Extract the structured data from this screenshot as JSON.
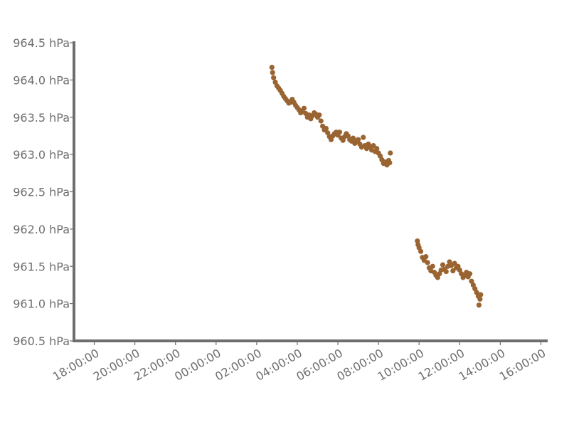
{
  "chart_data": {
    "type": "scatter",
    "title": "",
    "xlabel": "",
    "ylabel": "",
    "marker_color": "#9a6432",
    "axis_color": "#6e6e6e",
    "grid": false,
    "x_range": [
      "17:00:00",
      "40:20:00"
    ],
    "ylim": [
      960.5,
      964.5
    ],
    "x_ticks": [
      "18:00:00",
      "20:00:00",
      "22:00:00",
      "00:00:00",
      "02:00:00",
      "04:00:00",
      "06:00:00",
      "08:00:00",
      "10:00:00",
      "12:00:00",
      "14:00:00",
      "16:00:00"
    ],
    "y_ticks": [
      "960.5 hPa",
      "961.0 hPa",
      "961.5 hPa",
      "962.0 hPa",
      "962.5 hPa",
      "963.0 hPa",
      "963.5 hPa",
      "964.0 hPa",
      "964.5 hPa"
    ],
    "series": [
      {
        "points": [
          [
            "02:45",
            964.17
          ],
          [
            "02:47",
            964.1
          ],
          [
            "02:50",
            964.03
          ],
          [
            "02:55",
            963.97
          ],
          [
            "03:00",
            963.92
          ],
          [
            "03:05",
            963.89
          ],
          [
            "03:10",
            963.86
          ],
          [
            "03:15",
            963.82
          ],
          [
            "03:20",
            963.78
          ],
          [
            "03:25",
            963.75
          ],
          [
            "03:30",
            963.72
          ],
          [
            "03:35",
            963.69
          ],
          [
            "03:40",
            963.7
          ],
          [
            "03:45",
            963.74
          ],
          [
            "03:50",
            963.7
          ],
          [
            "03:55",
            963.66
          ],
          [
            "04:00",
            963.63
          ],
          [
            "04:05",
            963.6
          ],
          [
            "04:10",
            963.56
          ],
          [
            "04:15",
            963.58
          ],
          [
            "04:20",
            963.62
          ],
          [
            "04:25",
            963.55
          ],
          [
            "04:30",
            963.5
          ],
          [
            "04:35",
            963.53
          ],
          [
            "04:40",
            963.48
          ],
          [
            "04:45",
            963.52
          ],
          [
            "04:50",
            963.56
          ],
          [
            "04:55",
            963.54
          ],
          [
            "05:00",
            963.5
          ],
          [
            "05:05",
            963.53
          ],
          [
            "05:10",
            963.45
          ],
          [
            "05:15",
            963.38
          ],
          [
            "05:20",
            963.33
          ],
          [
            "05:25",
            963.35
          ],
          [
            "05:30",
            963.29
          ],
          [
            "05:35",
            963.24
          ],
          [
            "05:40",
            963.2
          ],
          [
            "05:45",
            963.25
          ],
          [
            "05:50",
            963.28
          ],
          [
            "05:55",
            963.3
          ],
          [
            "06:00",
            963.26
          ],
          [
            "06:05",
            963.3
          ],
          [
            "06:10",
            963.22
          ],
          [
            "06:15",
            963.19
          ],
          [
            "06:20",
            963.24
          ],
          [
            "06:25",
            963.28
          ],
          [
            "06:30",
            963.25
          ],
          [
            "06:35",
            963.2
          ],
          [
            "06:40",
            963.18
          ],
          [
            "06:45",
            963.22
          ],
          [
            "06:50",
            963.15
          ],
          [
            "06:55",
            963.18
          ],
          [
            "07:00",
            963.2
          ],
          [
            "07:05",
            963.14
          ],
          [
            "07:10",
            963.1
          ],
          [
            "07:15",
            963.23
          ],
          [
            "07:20",
            963.12
          ],
          [
            "07:25",
            963.08
          ],
          [
            "07:30",
            963.14
          ],
          [
            "07:35",
            963.1
          ],
          [
            "07:40",
            963.06
          ],
          [
            "07:45",
            963.12
          ],
          [
            "07:50",
            963.04
          ],
          [
            "07:55",
            963.08
          ],
          [
            "08:00",
            963.02
          ],
          [
            "08:05",
            962.98
          ],
          [
            "08:10",
            962.93
          ],
          [
            "08:15",
            962.88
          ],
          [
            "08:20",
            962.9
          ],
          [
            "08:25",
            962.86
          ],
          [
            "08:30",
            962.92
          ],
          [
            "08:33",
            962.89
          ],
          [
            "08:35",
            963.02
          ],
          [
            "09:55",
            961.84
          ],
          [
            "09:57",
            961.79
          ],
          [
            "10:00",
            961.75
          ],
          [
            "10:05",
            961.7
          ],
          [
            "10:10",
            961.62
          ],
          [
            "10:15",
            961.58
          ],
          [
            "10:20",
            961.63
          ],
          [
            "10:25",
            961.55
          ],
          [
            "10:30",
            961.48
          ],
          [
            "10:35",
            961.44
          ],
          [
            "10:40",
            961.5
          ],
          [
            "10:45",
            961.42
          ],
          [
            "10:50",
            961.38
          ],
          [
            "10:55",
            961.35
          ],
          [
            "11:00",
            961.4
          ],
          [
            "11:05",
            961.45
          ],
          [
            "11:10",
            961.52
          ],
          [
            "11:15",
            961.46
          ],
          [
            "11:20",
            961.43
          ],
          [
            "11:25",
            961.5
          ],
          [
            "11:30",
            961.56
          ],
          [
            "11:35",
            961.51
          ],
          [
            "11:40",
            961.44
          ],
          [
            "11:45",
            961.54
          ],
          [
            "11:50",
            961.48
          ],
          [
            "11:55",
            961.5
          ],
          [
            "12:00",
            961.45
          ],
          [
            "12:05",
            961.4
          ],
          [
            "12:10",
            961.35
          ],
          [
            "12:15",
            961.38
          ],
          [
            "12:20",
            961.42
          ],
          [
            "12:25",
            961.36
          ],
          [
            "12:30",
            961.4
          ],
          [
            "12:35",
            961.3
          ],
          [
            "12:40",
            961.25
          ],
          [
            "12:45",
            961.2
          ],
          [
            "12:50",
            961.15
          ],
          [
            "12:55",
            961.1
          ],
          [
            "13:00",
            961.06
          ],
          [
            "13:02",
            961.12
          ],
          [
            "12:57",
            960.98
          ]
        ]
      }
    ]
  }
}
